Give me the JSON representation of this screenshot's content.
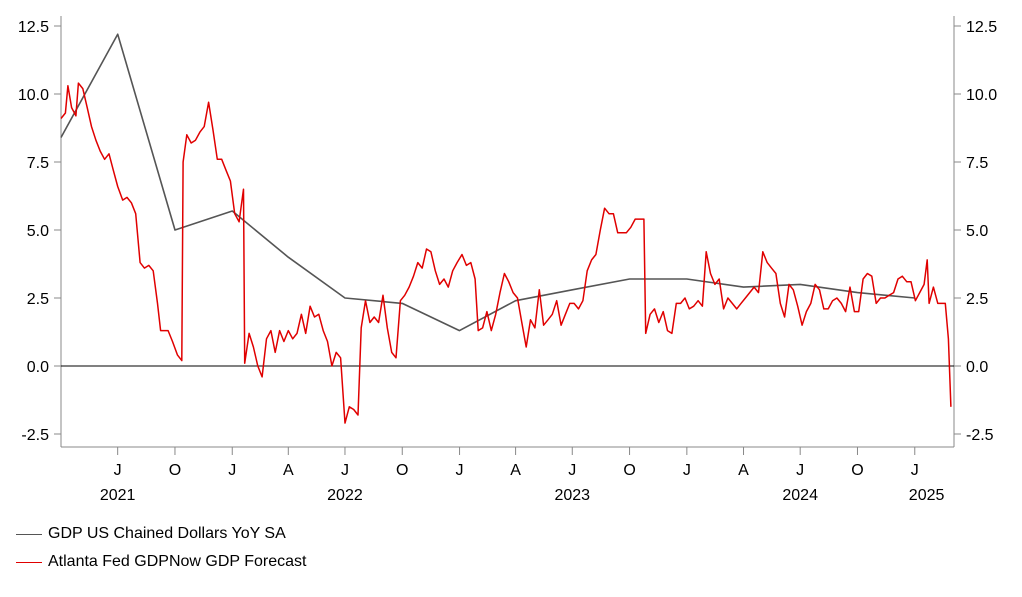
{
  "colors": {
    "gdp": "#555555",
    "gdpnow": "#e00000",
    "axis": "#888888",
    "zero": "#000000"
  },
  "chart_data": {
    "type": "line",
    "title": "",
    "xlabel": "",
    "ylabel": "",
    "x_range": [
      "2021-04-01",
      "2025-03-05"
    ],
    "ylim": [
      -3,
      13
    ],
    "y_ticks": [
      12.5,
      10.0,
      7.5,
      5.0,
      2.5,
      0.0,
      -2.5
    ],
    "y_tick_labels": [
      "12.5",
      "10.0",
      "7.5",
      "5.0",
      "2.5",
      "0.0",
      "-2.5"
    ],
    "grid": false,
    "legend_position": "bottom-left",
    "x_tick_labels": [
      {
        "date": "2021-07-01",
        "label": "J"
      },
      {
        "date": "2021-10-01",
        "label": "O"
      },
      {
        "date": "2022-01-01",
        "label": "J"
      },
      {
        "date": "2022-04-01",
        "label": "A"
      },
      {
        "date": "2022-07-01",
        "label": "J"
      },
      {
        "date": "2022-10-01",
        "label": "O"
      },
      {
        "date": "2023-01-01",
        "label": "J"
      },
      {
        "date": "2023-04-01",
        "label": "A"
      },
      {
        "date": "2023-07-01",
        "label": "J"
      },
      {
        "date": "2023-10-01",
        "label": "O"
      },
      {
        "date": "2024-01-01",
        "label": "J"
      },
      {
        "date": "2024-04-01",
        "label": "A"
      },
      {
        "date": "2024-07-01",
        "label": "J"
      },
      {
        "date": "2024-10-01",
        "label": "O"
      },
      {
        "date": "2025-01-01",
        "label": "J"
      }
    ],
    "year_labels": [
      {
        "date": "2021-07-01",
        "label": "2021"
      },
      {
        "date": "2022-07-01",
        "label": "2022"
      },
      {
        "date": "2023-07-01",
        "label": "2023"
      },
      {
        "date": "2024-07-01",
        "label": "2024"
      },
      {
        "date": "2025-01-20",
        "label": "2025"
      }
    ],
    "series": [
      {
        "name": "GDP US Chained Dollars YoY SA",
        "color": "#555555",
        "points": [
          [
            "2021-04-01",
            8.4
          ],
          [
            "2021-07-01",
            12.2
          ],
          [
            "2021-10-01",
            5.0
          ],
          [
            "2022-01-01",
            5.7
          ],
          [
            "2022-04-01",
            4.0
          ],
          [
            "2022-07-01",
            2.5
          ],
          [
            "2022-10-01",
            2.3
          ],
          [
            "2023-01-01",
            1.3
          ],
          [
            "2023-04-01",
            2.4
          ],
          [
            "2023-07-01",
            2.8
          ],
          [
            "2023-10-01",
            3.2
          ],
          [
            "2024-01-01",
            3.2
          ],
          [
            "2024-04-01",
            2.9
          ],
          [
            "2024-07-01",
            3.0
          ],
          [
            "2024-10-01",
            2.7
          ],
          [
            "2025-01-01",
            2.5
          ]
        ]
      },
      {
        "name": "Atlanta Fed GDPNow GDP Forecast",
        "color": "#e00000",
        "points": [
          [
            "2021-04-01",
            9.1
          ],
          [
            "2021-04-08",
            9.3
          ],
          [
            "2021-04-12",
            10.3
          ],
          [
            "2021-04-18",
            9.5
          ],
          [
            "2021-04-25",
            9.2
          ],
          [
            "2021-04-29",
            10.4
          ],
          [
            "2021-05-06",
            10.2
          ],
          [
            "2021-05-13",
            9.5
          ],
          [
            "2021-05-20",
            8.8
          ],
          [
            "2021-05-27",
            8.3
          ],
          [
            "2021-06-03",
            7.9
          ],
          [
            "2021-06-10",
            7.6
          ],
          [
            "2021-06-17",
            7.8
          ],
          [
            "2021-06-24",
            7.2
          ],
          [
            "2021-07-01",
            6.6
          ],
          [
            "2021-07-09",
            6.1
          ],
          [
            "2021-07-16",
            6.2
          ],
          [
            "2021-07-23",
            6.0
          ],
          [
            "2021-07-30",
            5.6
          ],
          [
            "2021-08-06",
            3.8
          ],
          [
            "2021-08-13",
            3.6
          ],
          [
            "2021-08-20",
            3.7
          ],
          [
            "2021-08-27",
            3.5
          ],
          [
            "2021-09-03",
            2.3
          ],
          [
            "2021-09-08",
            1.3
          ],
          [
            "2021-09-20",
            1.3
          ],
          [
            "2021-09-27",
            0.9
          ],
          [
            "2021-10-05",
            0.4
          ],
          [
            "2021-10-12",
            0.2
          ],
          [
            "2021-10-14",
            7.5
          ],
          [
            "2021-10-20",
            8.5
          ],
          [
            "2021-10-27",
            8.2
          ],
          [
            "2021-11-03",
            8.3
          ],
          [
            "2021-11-10",
            8.6
          ],
          [
            "2021-11-17",
            8.8
          ],
          [
            "2021-11-24",
            9.7
          ],
          [
            "2021-12-01",
            8.7
          ],
          [
            "2021-12-08",
            7.6
          ],
          [
            "2021-12-15",
            7.6
          ],
          [
            "2021-12-22",
            7.2
          ],
          [
            "2021-12-29",
            6.8
          ],
          [
            "2022-01-05",
            5.6
          ],
          [
            "2022-01-12",
            5.3
          ],
          [
            "2022-01-19",
            6.5
          ],
          [
            "2022-01-21",
            0.1
          ],
          [
            "2022-01-28",
            1.2
          ],
          [
            "2022-02-04",
            0.7
          ],
          [
            "2022-02-11",
            0.0
          ],
          [
            "2022-02-18",
            -0.4
          ],
          [
            "2022-02-25",
            1.0
          ],
          [
            "2022-03-04",
            1.3
          ],
          [
            "2022-03-11",
            0.5
          ],
          [
            "2022-03-18",
            1.3
          ],
          [
            "2022-03-25",
            0.9
          ],
          [
            "2022-04-01",
            1.3
          ],
          [
            "2022-04-08",
            1.0
          ],
          [
            "2022-04-15",
            1.2
          ],
          [
            "2022-04-22",
            1.9
          ],
          [
            "2022-04-29",
            1.2
          ],
          [
            "2022-05-06",
            2.2
          ],
          [
            "2022-05-13",
            1.8
          ],
          [
            "2022-05-20",
            1.9
          ],
          [
            "2022-05-27",
            1.3
          ],
          [
            "2022-06-03",
            0.9
          ],
          [
            "2022-06-10",
            0.0
          ],
          [
            "2022-06-17",
            0.5
          ],
          [
            "2022-06-24",
            0.3
          ],
          [
            "2022-07-01",
            -2.1
          ],
          [
            "2022-07-08",
            -1.5
          ],
          [
            "2022-07-15",
            -1.6
          ],
          [
            "2022-07-22",
            -1.8
          ],
          [
            "2022-07-27",
            1.4
          ],
          [
            "2022-08-03",
            2.4
          ],
          [
            "2022-08-10",
            1.6
          ],
          [
            "2022-08-17",
            1.8
          ],
          [
            "2022-08-24",
            1.6
          ],
          [
            "2022-08-31",
            2.6
          ],
          [
            "2022-09-07",
            1.4
          ],
          [
            "2022-09-14",
            0.5
          ],
          [
            "2022-09-21",
            0.3
          ],
          [
            "2022-09-28",
            2.4
          ],
          [
            "2022-10-05",
            2.6
          ],
          [
            "2022-10-12",
            2.9
          ],
          [
            "2022-10-19",
            3.3
          ],
          [
            "2022-10-26",
            3.8
          ],
          [
            "2022-11-02",
            3.6
          ],
          [
            "2022-11-09",
            4.3
          ],
          [
            "2022-11-16",
            4.2
          ],
          [
            "2022-11-23",
            3.5
          ],
          [
            "2022-11-30",
            3.0
          ],
          [
            "2022-12-07",
            3.2
          ],
          [
            "2022-12-14",
            2.9
          ],
          [
            "2022-12-21",
            3.5
          ],
          [
            "2022-12-28",
            3.8
          ],
          [
            "2023-01-05",
            4.1
          ],
          [
            "2023-01-12",
            3.7
          ],
          [
            "2023-01-19",
            3.8
          ],
          [
            "2023-01-26",
            3.2
          ],
          [
            "2023-01-31",
            1.3
          ],
          [
            "2023-02-07",
            1.4
          ],
          [
            "2023-02-14",
            2.0
          ],
          [
            "2023-02-21",
            1.3
          ],
          [
            "2023-02-28",
            1.9
          ],
          [
            "2023-03-07",
            2.7
          ],
          [
            "2023-03-14",
            3.4
          ],
          [
            "2023-03-21",
            3.1
          ],
          [
            "2023-03-28",
            2.7
          ],
          [
            "2023-04-04",
            2.5
          ],
          [
            "2023-04-11",
            1.6
          ],
          [
            "2023-04-18",
            0.7
          ],
          [
            "2023-04-25",
            1.7
          ],
          [
            "2023-05-02",
            1.4
          ],
          [
            "2023-05-09",
            2.8
          ],
          [
            "2023-05-16",
            1.5
          ],
          [
            "2023-05-23",
            1.7
          ],
          [
            "2023-05-30",
            1.9
          ],
          [
            "2023-06-06",
            2.4
          ],
          [
            "2023-06-13",
            1.5
          ],
          [
            "2023-06-20",
            1.9
          ],
          [
            "2023-06-27",
            2.3
          ],
          [
            "2023-07-04",
            2.3
          ],
          [
            "2023-07-11",
            2.1
          ],
          [
            "2023-07-18",
            2.4
          ],
          [
            "2023-07-25",
            3.5
          ],
          [
            "2023-08-01",
            3.9
          ],
          [
            "2023-08-08",
            4.1
          ],
          [
            "2023-08-15",
            5.0
          ],
          [
            "2023-08-22",
            5.8
          ],
          [
            "2023-08-29",
            5.6
          ],
          [
            "2023-09-05",
            5.6
          ],
          [
            "2023-09-12",
            4.9
          ],
          [
            "2023-09-19",
            4.9
          ],
          [
            "2023-09-26",
            4.9
          ],
          [
            "2023-10-03",
            5.1
          ],
          [
            "2023-10-10",
            5.4
          ],
          [
            "2023-10-17",
            5.4
          ],
          [
            "2023-10-24",
            5.4
          ],
          [
            "2023-10-27",
            1.2
          ],
          [
            "2023-11-03",
            1.9
          ],
          [
            "2023-11-10",
            2.1
          ],
          [
            "2023-11-17",
            1.6
          ],
          [
            "2023-11-24",
            2.0
          ],
          [
            "2023-12-01",
            1.3
          ],
          [
            "2023-12-08",
            1.2
          ],
          [
            "2023-12-15",
            2.3
          ],
          [
            "2023-12-22",
            2.3
          ],
          [
            "2023-12-29",
            2.5
          ],
          [
            "2024-01-05",
            2.1
          ],
          [
            "2024-01-12",
            2.2
          ],
          [
            "2024-01-19",
            2.4
          ],
          [
            "2024-01-26",
            2.2
          ],
          [
            "2024-02-01",
            4.2
          ],
          [
            "2024-02-08",
            3.4
          ],
          [
            "2024-02-15",
            3.0
          ],
          [
            "2024-02-22",
            3.2
          ],
          [
            "2024-02-29",
            2.1
          ],
          [
            "2024-03-07",
            2.5
          ],
          [
            "2024-03-14",
            2.3
          ],
          [
            "2024-03-21",
            2.1
          ],
          [
            "2024-03-28",
            2.3
          ],
          [
            "2024-04-04",
            2.5
          ],
          [
            "2024-04-11",
            2.7
          ],
          [
            "2024-04-18",
            2.9
          ],
          [
            "2024-04-25",
            2.7
          ],
          [
            "2024-05-02",
            4.2
          ],
          [
            "2024-05-09",
            3.8
          ],
          [
            "2024-05-16",
            3.6
          ],
          [
            "2024-05-23",
            3.4
          ],
          [
            "2024-05-30",
            2.3
          ],
          [
            "2024-06-06",
            1.8
          ],
          [
            "2024-06-13",
            3.0
          ],
          [
            "2024-06-20",
            2.8
          ],
          [
            "2024-06-27",
            2.2
          ],
          [
            "2024-07-04",
            1.5
          ],
          [
            "2024-07-11",
            2.0
          ],
          [
            "2024-07-18",
            2.3
          ],
          [
            "2024-07-25",
            3.0
          ],
          [
            "2024-08-01",
            2.8
          ],
          [
            "2024-08-08",
            2.1
          ],
          [
            "2024-08-15",
            2.1
          ],
          [
            "2024-08-22",
            2.4
          ],
          [
            "2024-08-29",
            2.5
          ],
          [
            "2024-09-05",
            2.3
          ],
          [
            "2024-09-12",
            2.0
          ],
          [
            "2024-09-19",
            2.9
          ],
          [
            "2024-09-26",
            2.0
          ],
          [
            "2024-10-03",
            2.0
          ],
          [
            "2024-10-10",
            3.2
          ],
          [
            "2024-10-17",
            3.4
          ],
          [
            "2024-10-24",
            3.3
          ],
          [
            "2024-10-31",
            2.3
          ],
          [
            "2024-11-07",
            2.5
          ],
          [
            "2024-11-14",
            2.5
          ],
          [
            "2024-11-21",
            2.6
          ],
          [
            "2024-11-28",
            2.7
          ],
          [
            "2024-12-05",
            3.2
          ],
          [
            "2024-12-12",
            3.3
          ],
          [
            "2024-12-19",
            3.1
          ],
          [
            "2024-12-26",
            3.1
          ],
          [
            "2025-01-02",
            2.4
          ],
          [
            "2025-01-09",
            2.7
          ],
          [
            "2025-01-16",
            3.0
          ],
          [
            "2025-01-21",
            3.9
          ],
          [
            "2025-01-24",
            2.3
          ],
          [
            "2025-01-31",
            2.9
          ],
          [
            "2025-02-07",
            2.3
          ],
          [
            "2025-02-14",
            2.3
          ],
          [
            "2025-02-19",
            2.3
          ],
          [
            "2025-02-24",
            1.0
          ],
          [
            "2025-02-28",
            -1.5
          ]
        ]
      }
    ]
  },
  "legend": {
    "items": [
      {
        "label": "GDP US Chained Dollars YoY SA"
      },
      {
        "label": "Atlanta Fed GDPNow GDP Forecast"
      }
    ]
  }
}
